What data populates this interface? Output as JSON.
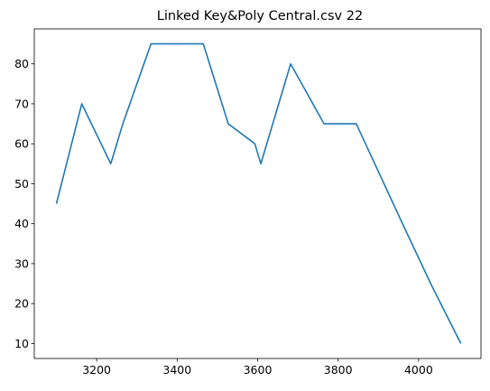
{
  "chart_data": {
    "type": "line",
    "title": "Linked Key&Poly Central.csv 22",
    "xlabel": "",
    "ylabel": "",
    "xlim": [
      3045,
      4155
    ],
    "ylim": [
      6.25,
      88.75
    ],
    "x_ticks": [
      3200,
      3400,
      3600,
      3800,
      4000
    ],
    "y_ticks": [
      10,
      20,
      30,
      40,
      50,
      60,
      70,
      80
    ],
    "grid": false,
    "series": [
      {
        "color": "#1f77b4",
        "x": [
          3100,
          3163,
          3235,
          3265,
          3335,
          3465,
          3527,
          3593,
          3608,
          3682,
          3765,
          3845,
          3960,
          4030,
          4105
        ],
        "y": [
          45,
          70,
          55,
          65,
          85,
          85,
          65,
          60,
          55,
          80,
          65,
          65,
          40,
          25,
          10
        ]
      }
    ]
  }
}
